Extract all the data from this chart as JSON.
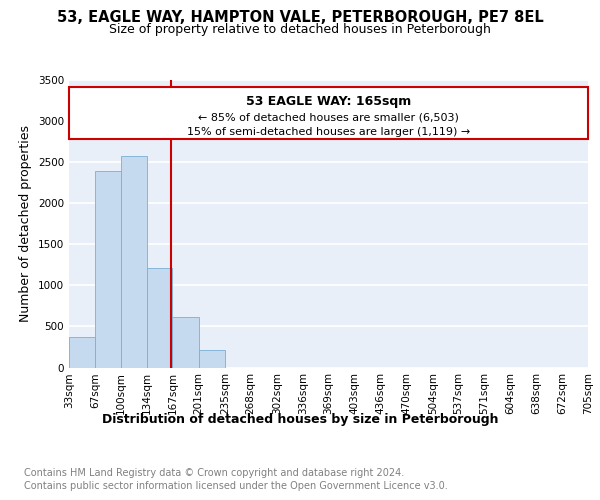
{
  "title1": "53, EAGLE WAY, HAMPTON VALE, PETERBOROUGH, PE7 8EL",
  "title2": "Size of property relative to detached houses in Peterborough",
  "xlabel": "Distribution of detached houses by size in Peterborough",
  "ylabel": "Number of detached properties",
  "footnote1": "Contains HM Land Registry data © Crown copyright and database right 2024.",
  "footnote2": "Contains public sector information licensed under the Open Government Licence v3.0.",
  "annotation_title": "53 EAGLE WAY: 165sqm",
  "annotation_line1": "← 85% of detached houses are smaller (6,503)",
  "annotation_line2": "15% of semi-detached houses are larger (1,119) →",
  "property_size": 165,
  "bar_edges": [
    33,
    67,
    100,
    134,
    167,
    201,
    235,
    268,
    302,
    336,
    369,
    403,
    436,
    470,
    504,
    537,
    571,
    604,
    638,
    672,
    705
  ],
  "bar_counts": [
    370,
    2390,
    2570,
    1210,
    620,
    215,
    0,
    0,
    0,
    0,
    0,
    0,
    0,
    0,
    0,
    0,
    0,
    0,
    0,
    0
  ],
  "bar_color": "#C5D9EF",
  "bar_edge_color": "#7BAFD4",
  "vline_color": "#CC0000",
  "vline_x": 165,
  "ylim": [
    0,
    3500
  ],
  "yticks": [
    0,
    500,
    1000,
    1500,
    2000,
    2500,
    3000,
    3500
  ],
  "bg_color": "#E8EFF8",
  "grid_color": "#FFFFFF",
  "annotation_box_color": "#FFFFFF",
  "annotation_box_edge": "#CC0000",
  "title_fontsize": 10.5,
  "subtitle_fontsize": 9,
  "axis_label_fontsize": 9,
  "tick_fontsize": 7.5,
  "footnote_fontsize": 7
}
